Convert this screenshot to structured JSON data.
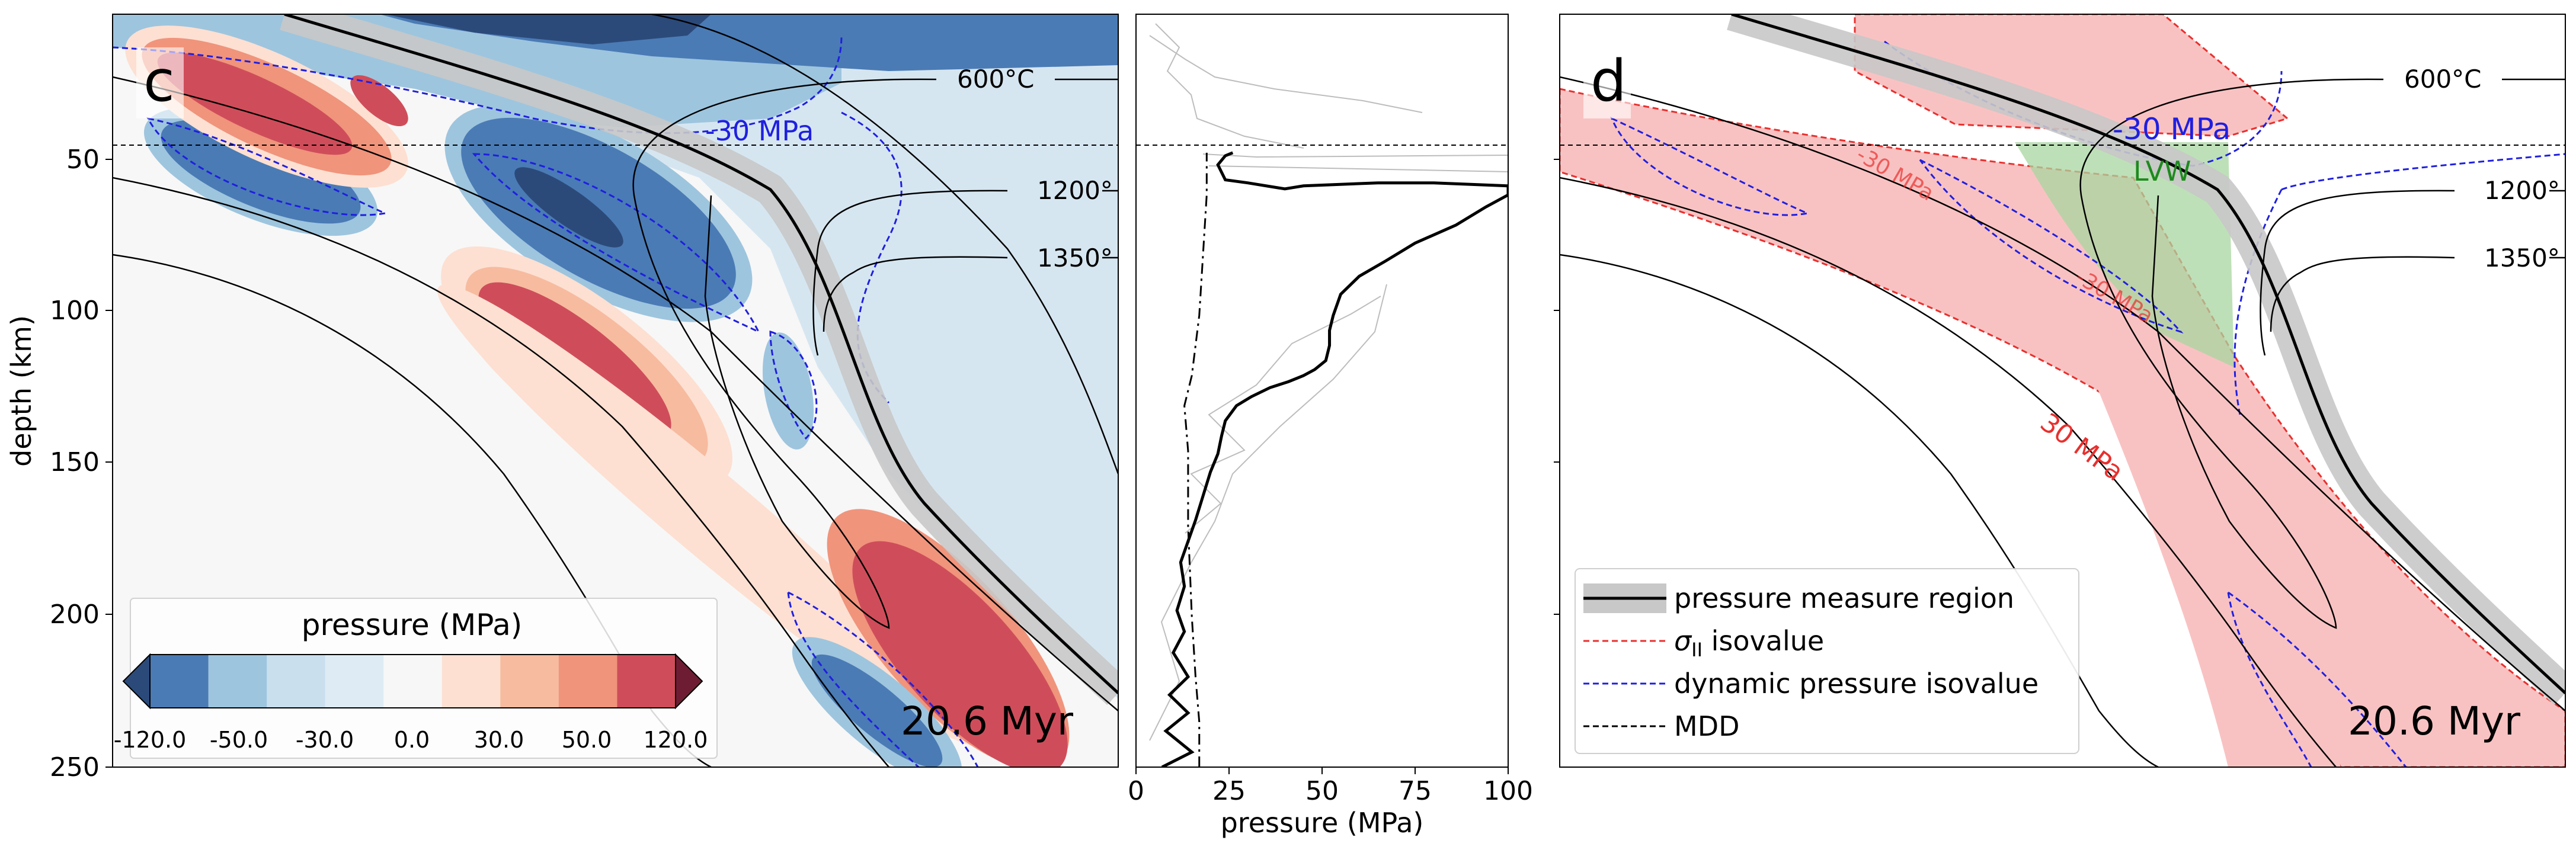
{
  "figure": {
    "panel_c": {
      "letter": "c",
      "time": "20.6 Myr"
    },
    "panel_d": {
      "letter": "d",
      "time": "20.6 Myr"
    },
    "ylabel": "depth (km)",
    "yticks": [
      "50",
      "100",
      "150",
      "200",
      "250"
    ],
    "middle_xlabel": "pressure (MPa)",
    "middle_xticks": [
      "0",
      "25",
      "50",
      "75",
      "100"
    ],
    "colorbar": {
      "title": "pressure (MPa)",
      "tick_labels": [
        "-120.0",
        "-50.0",
        "-30.0",
        "0.0",
        "30.0",
        "50.0",
        "120.0"
      ],
      "colors": [
        "#2b4a7a",
        "#4a7bb5",
        "#9ec5de",
        "#c9dfee",
        "#deebf4",
        "#f7f7f7",
        "#fde0d2",
        "#f7bba0",
        "#f0947c",
        "#cf4d5a",
        "#6e1c33"
      ]
    },
    "isotherm_labels": [
      "600°C",
      "1200°",
      "1350°"
    ],
    "contour_labels_c": [
      "-30 MPa"
    ],
    "contour_labels_d": [
      "-30 MPa",
      "LVW",
      "30 MPa",
      "-30 MPa",
      "-30 MPa"
    ],
    "legend": [
      {
        "label_pre": "pressure measure region",
        "style": "region"
      },
      {
        "label_pre": "σ",
        "label_sub": "II",
        "label_post": " isovalue",
        "style": "red-dash"
      },
      {
        "label_pre": "dynamic pressure isovalue",
        "style": "blue-dash"
      },
      {
        "label_pre": "MDD",
        "style": "black-dash"
      }
    ],
    "colors": {
      "red_dash": "#e8302e",
      "blue_dash": "#1f1fe0",
      "lvw_green": "#a8d5a0",
      "pink_region": "#f9c2c2",
      "measure_region": "#bdbdbd"
    }
  },
  "chart_data": {
    "type": "line",
    "x_axis": "pressure (MPa)",
    "y_axis": "depth (km)",
    "xlim": [
      0,
      100
    ],
    "ylim": [
      250,
      0
    ],
    "mdd_depth_km": 46,
    "series": [
      {
        "style": "bold-solid",
        "points": [
          [
            7,
            250
          ],
          [
            15,
            245
          ],
          [
            8,
            238
          ],
          [
            14,
            232
          ],
          [
            9,
            226
          ],
          [
            14,
            220
          ],
          [
            10,
            212
          ],
          [
            13,
            205
          ],
          [
            11,
            198
          ],
          [
            13,
            190
          ],
          [
            12,
            182
          ],
          [
            14,
            175
          ],
          [
            16,
            168
          ],
          [
            18,
            160
          ],
          [
            20,
            152
          ],
          [
            22,
            146
          ],
          [
            23,
            140
          ],
          [
            24,
            135
          ],
          [
            27,
            130
          ],
          [
            31,
            127
          ],
          [
            36,
            124
          ],
          [
            41,
            122
          ],
          [
            45,
            120
          ],
          [
            48,
            118
          ],
          [
            51,
            115
          ],
          [
            52,
            110
          ],
          [
            52,
            105
          ],
          [
            53,
            100
          ],
          [
            55,
            93
          ],
          [
            60,
            87
          ],
          [
            67,
            82
          ],
          [
            75,
            76
          ],
          [
            86,
            70
          ],
          [
            94,
            64
          ],
          [
            100,
            60
          ],
          [
            100,
            57
          ],
          [
            80,
            56
          ],
          [
            65,
            56
          ],
          [
            45,
            57
          ],
          [
            40,
            58
          ],
          [
            30,
            56
          ],
          [
            24,
            55
          ],
          [
            22,
            50
          ],
          [
            24,
            47
          ],
          [
            26,
            46
          ]
        ]
      },
      {
        "style": "dash-dot",
        "points": [
          [
            17,
            250
          ],
          [
            17,
            235
          ],
          [
            16,
            220
          ],
          [
            15,
            200
          ],
          [
            14,
            170
          ],
          [
            14,
            145
          ],
          [
            13,
            130
          ],
          [
            15,
            120
          ],
          [
            17,
            100
          ],
          [
            18,
            80
          ],
          [
            19,
            60
          ],
          [
            19,
            46
          ]
        ]
      }
    ]
  }
}
